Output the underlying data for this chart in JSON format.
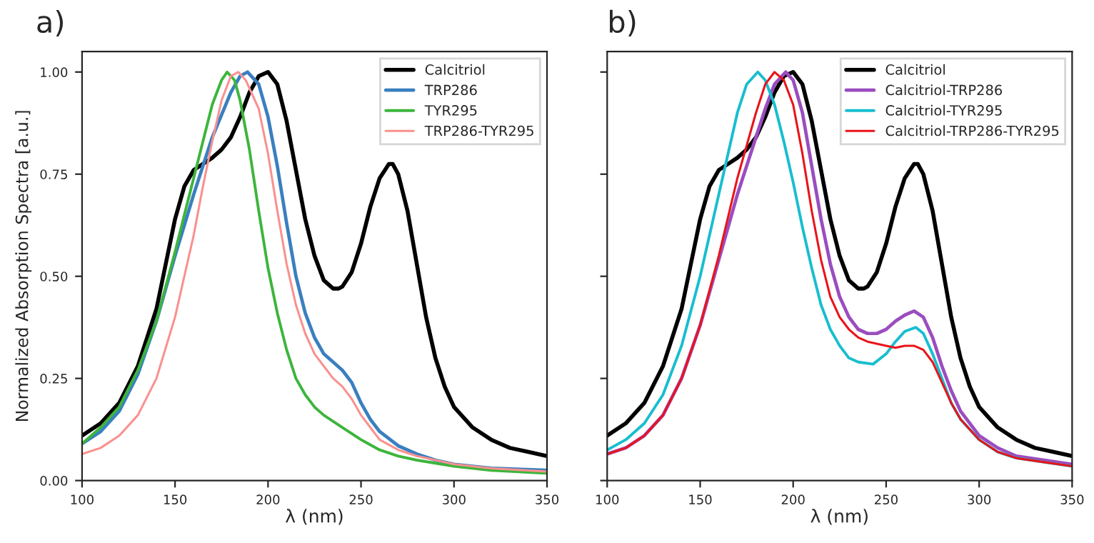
{
  "chart_data": [
    {
      "type": "line",
      "title": "a)",
      "xlabel": "λ (nm)",
      "ylabel": "Normalized Absorption Spectra [a.u.]",
      "xlim": [
        100,
        350
      ],
      "ylim": [
        0,
        1.05
      ],
      "xticks": [
        100,
        150,
        200,
        250,
        300,
        350
      ],
      "yticks": [
        {
          "value": 0,
          "label": "0.00"
        },
        {
          "value": 0.25,
          "label": "0.25"
        },
        {
          "value": 0.5,
          "label": "0.50"
        },
        {
          "value": 0.75,
          "label": "0.75"
        },
        {
          "value": 1,
          "label": "1.00"
        }
      ],
      "grid": false,
      "legend": "top right",
      "marker": "none",
      "line_style": "solid",
      "series": [
        {
          "name": "Calcitriol",
          "color": "#000000",
          "x": [
            100,
            110,
            120,
            130,
            140,
            145,
            150,
            155,
            160,
            170,
            175,
            180,
            185,
            190,
            195,
            200,
            205,
            210,
            215,
            220,
            225,
            230,
            235,
            238,
            240,
            245,
            250,
            255,
            260,
            265,
            267,
            270,
            275,
            280,
            285,
            290,
            295,
            300,
            310,
            320,
            330,
            340,
            350
          ],
          "values": [
            0.11,
            0.14,
            0.19,
            0.28,
            0.42,
            0.53,
            0.64,
            0.72,
            0.76,
            0.79,
            0.81,
            0.84,
            0.89,
            0.95,
            0.99,
            1.0,
            0.97,
            0.88,
            0.76,
            0.64,
            0.55,
            0.49,
            0.47,
            0.47,
            0.475,
            0.51,
            0.58,
            0.67,
            0.74,
            0.775,
            0.775,
            0.75,
            0.66,
            0.53,
            0.4,
            0.3,
            0.23,
            0.18,
            0.13,
            0.1,
            0.08,
            0.07,
            0.06
          ]
        },
        {
          "name": "TRP286",
          "color": "#3a7fc0",
          "x": [
            100,
            110,
            120,
            130,
            140,
            150,
            160,
            170,
            180,
            185,
            189,
            195,
            200,
            205,
            210,
            215,
            220,
            225,
            230,
            235,
            240,
            245,
            250,
            255,
            260,
            270,
            280,
            290,
            300,
            320,
            350
          ],
          "values": [
            0.09,
            0.12,
            0.17,
            0.26,
            0.39,
            0.55,
            0.7,
            0.84,
            0.95,
            0.99,
            1.0,
            0.97,
            0.89,
            0.77,
            0.63,
            0.5,
            0.41,
            0.35,
            0.31,
            0.29,
            0.27,
            0.24,
            0.19,
            0.15,
            0.12,
            0.085,
            0.065,
            0.05,
            0.04,
            0.03,
            0.025
          ]
        },
        {
          "name": "TYR295",
          "color": "#3cb53c",
          "x": [
            100,
            110,
            120,
            130,
            140,
            150,
            160,
            165,
            170,
            175,
            178,
            182,
            185,
            190,
            195,
            200,
            205,
            210,
            215,
            220,
            225,
            230,
            240,
            250,
            260,
            270,
            280,
            300,
            320,
            350
          ],
          "values": [
            0.09,
            0.13,
            0.18,
            0.27,
            0.39,
            0.56,
            0.74,
            0.83,
            0.92,
            0.98,
            1.0,
            0.98,
            0.93,
            0.81,
            0.66,
            0.52,
            0.41,
            0.32,
            0.25,
            0.21,
            0.18,
            0.16,
            0.13,
            0.1,
            0.075,
            0.06,
            0.05,
            0.035,
            0.025,
            0.018
          ]
        },
        {
          "name": "TRP286-TYR295",
          "color": "#f9918f",
          "x": [
            100,
            110,
            120,
            130,
            140,
            150,
            160,
            165,
            170,
            175,
            180,
            184,
            188,
            195,
            200,
            205,
            210,
            215,
            220,
            225,
            230,
            235,
            240,
            245,
            250,
            255,
            260,
            270,
            280,
            300,
            320,
            350
          ],
          "values": [
            0.065,
            0.08,
            0.11,
            0.16,
            0.25,
            0.4,
            0.6,
            0.72,
            0.83,
            0.93,
            0.99,
            1.0,
            0.98,
            0.91,
            0.8,
            0.66,
            0.53,
            0.43,
            0.36,
            0.31,
            0.28,
            0.25,
            0.23,
            0.2,
            0.16,
            0.13,
            0.1,
            0.075,
            0.06,
            0.04,
            0.03,
            0.022
          ]
        }
      ]
    },
    {
      "type": "line",
      "title": "b)",
      "xlabel": "λ (nm)",
      "xlim": [
        100,
        350
      ],
      "ylim": [
        0,
        1.05
      ],
      "xticks": [
        100,
        150,
        200,
        250,
        300,
        350
      ],
      "yticks": [
        0,
        0.25,
        0.5,
        0.75,
        1
      ],
      "tick_labels": "x",
      "grid": false,
      "legend": "top right",
      "marker": "none",
      "line_style": "solid",
      "series": [
        {
          "name": "Calcitriol",
          "color": "#000000",
          "x": [
            100,
            110,
            120,
            130,
            140,
            145,
            150,
            155,
            160,
            170,
            175,
            180,
            185,
            190,
            195,
            200,
            205,
            210,
            215,
            220,
            225,
            230,
            235,
            238,
            240,
            245,
            250,
            255,
            260,
            265,
            267,
            270,
            275,
            280,
            285,
            290,
            295,
            300,
            310,
            320,
            330,
            340,
            350
          ],
          "values": [
            0.11,
            0.14,
            0.19,
            0.28,
            0.42,
            0.53,
            0.64,
            0.72,
            0.76,
            0.79,
            0.81,
            0.84,
            0.89,
            0.95,
            0.99,
            1.0,
            0.97,
            0.88,
            0.76,
            0.64,
            0.55,
            0.49,
            0.47,
            0.47,
            0.475,
            0.51,
            0.58,
            0.67,
            0.74,
            0.775,
            0.775,
            0.75,
            0.66,
            0.53,
            0.4,
            0.3,
            0.23,
            0.18,
            0.13,
            0.1,
            0.08,
            0.07,
            0.06
          ]
        },
        {
          "name": "Calcitriol-TRP286",
          "color": "#9b4dbf",
          "x": [
            100,
            110,
            120,
            130,
            140,
            150,
            160,
            170,
            180,
            185,
            190,
            196,
            200,
            205,
            210,
            215,
            220,
            225,
            230,
            235,
            240,
            245,
            250,
            255,
            260,
            265,
            270,
            275,
            280,
            285,
            290,
            300,
            310,
            320,
            335,
            350
          ],
          "values": [
            0.065,
            0.08,
            0.11,
            0.16,
            0.25,
            0.38,
            0.54,
            0.7,
            0.84,
            0.91,
            0.97,
            1.0,
            0.98,
            0.9,
            0.77,
            0.64,
            0.53,
            0.45,
            0.4,
            0.37,
            0.36,
            0.36,
            0.37,
            0.39,
            0.405,
            0.415,
            0.4,
            0.35,
            0.28,
            0.22,
            0.17,
            0.11,
            0.08,
            0.06,
            0.05,
            0.04
          ]
        },
        {
          "name": "Calcitriol-TYR295",
          "color": "#17becf",
          "x": [
            100,
            110,
            120,
            130,
            140,
            150,
            160,
            170,
            175,
            181,
            185,
            190,
            195,
            200,
            205,
            210,
            215,
            220,
            225,
            230,
            235,
            243,
            250,
            255,
            260,
            266,
            270,
            275,
            280,
            285,
            290,
            300,
            310,
            320,
            335,
            350
          ],
          "values": [
            0.075,
            0.1,
            0.14,
            0.21,
            0.33,
            0.5,
            0.7,
            0.9,
            0.97,
            1.0,
            0.98,
            0.92,
            0.83,
            0.73,
            0.62,
            0.52,
            0.43,
            0.37,
            0.33,
            0.3,
            0.29,
            0.285,
            0.31,
            0.34,
            0.365,
            0.375,
            0.36,
            0.31,
            0.25,
            0.19,
            0.15,
            0.1,
            0.07,
            0.055,
            0.045,
            0.035
          ]
        },
        {
          "name": "Calcitriol-TRP286-TYR295",
          "color": "#e8141a",
          "x": [
            100,
            110,
            120,
            130,
            140,
            150,
            160,
            170,
            180,
            185,
            190,
            195,
            200,
            205,
            210,
            215,
            220,
            225,
            230,
            235,
            240,
            250,
            255,
            260,
            265,
            270,
            275,
            280,
            285,
            290,
            300,
            310,
            320,
            335,
            350
          ],
          "values": [
            0.065,
            0.08,
            0.11,
            0.16,
            0.25,
            0.38,
            0.55,
            0.74,
            0.9,
            0.97,
            1.0,
            0.98,
            0.92,
            0.8,
            0.66,
            0.54,
            0.45,
            0.4,
            0.37,
            0.35,
            0.34,
            0.33,
            0.325,
            0.33,
            0.33,
            0.32,
            0.29,
            0.24,
            0.19,
            0.15,
            0.1,
            0.07,
            0.055,
            0.045,
            0.035
          ]
        }
      ]
    }
  ]
}
